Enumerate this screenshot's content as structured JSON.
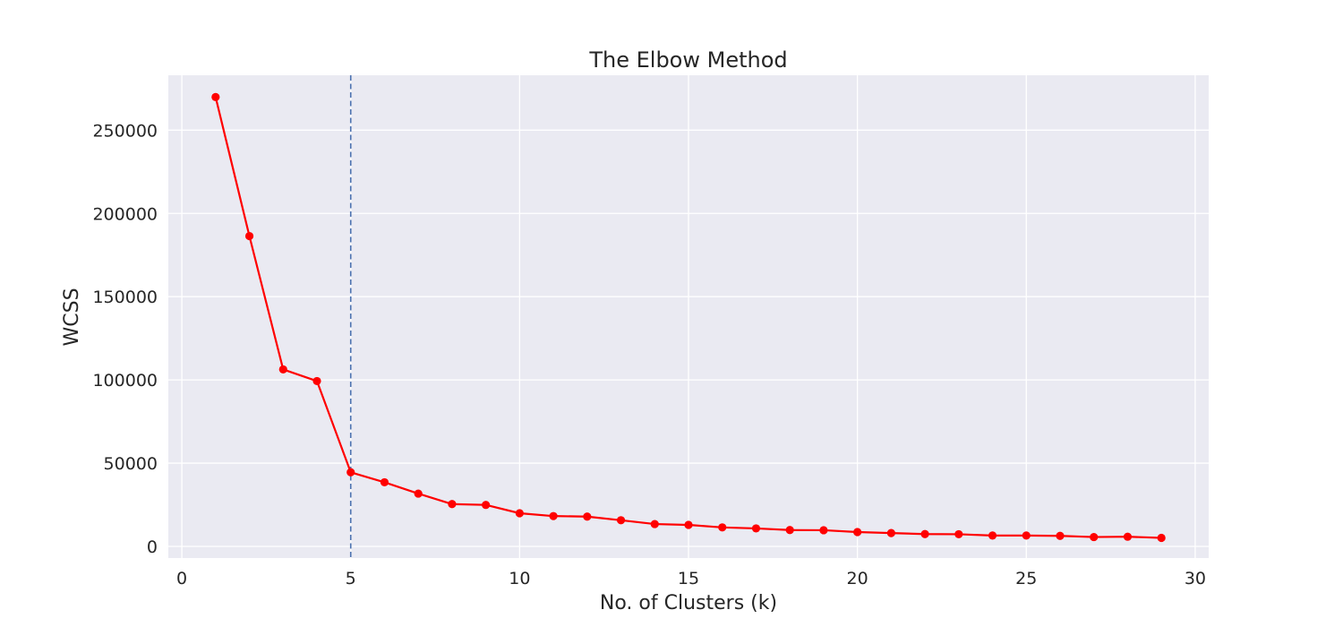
{
  "chart_data": {
    "type": "line",
    "title": "The Elbow Method",
    "xlabel": "No. of Clusters (k)",
    "ylabel": "WCSS",
    "xlim": [
      -0.4,
      30.4
    ],
    "ylim": [
      -7000,
      283000
    ],
    "x_ticks": [
      0,
      5,
      10,
      15,
      20,
      25,
      30
    ],
    "y_ticks": [
      0,
      50000,
      100000,
      150000,
      200000,
      250000
    ],
    "grid": true,
    "series": [
      {
        "color": "#ff0000",
        "marker": "circle",
        "x": [
          1,
          2,
          3,
          4,
          5,
          6,
          7,
          8,
          9,
          10,
          11,
          12,
          13,
          14,
          15,
          16,
          17,
          18,
          19,
          20,
          21,
          22,
          23,
          24,
          25,
          26,
          27,
          28,
          29
        ],
        "y": [
          269900,
          186400,
          106300,
          99300,
          44500,
          38500,
          31700,
          25400,
          24900,
          19900,
          18200,
          17900,
          15700,
          13400,
          12900,
          11400,
          10800,
          9800,
          9700,
          8600,
          8000,
          7400,
          7300,
          6500,
          6500,
          6300,
          5600,
          5800,
          5100
        ]
      }
    ],
    "reference_lines": [
      {
        "orientation": "vertical",
        "x": 5,
        "style": "dashed",
        "color": "#4c72b0"
      }
    ],
    "colors": {
      "plot_background": "#eaeaf2",
      "grid": "#ffffff"
    }
  }
}
